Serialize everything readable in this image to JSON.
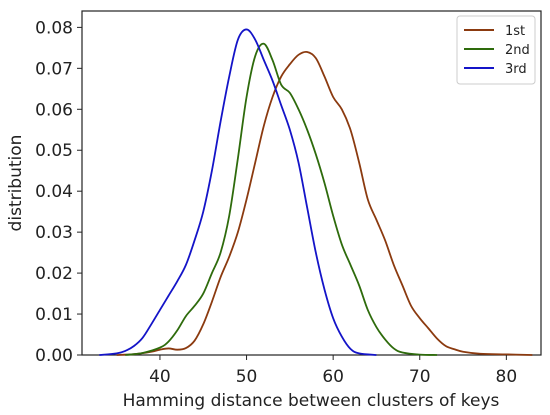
{
  "chart_data": {
    "type": "line",
    "xlabel": "Hamming distance between clusters of keys",
    "ylabel": "distribution",
    "xlim": [
      31,
      84
    ],
    "ylim": [
      0,
      0.084
    ],
    "x_ticks": [
      40,
      50,
      60,
      70,
      80
    ],
    "x_tick_labels": [
      "40",
      "50",
      "60",
      "70",
      "80"
    ],
    "y_ticks": [
      0,
      0.01,
      0.02,
      0.03,
      0.04,
      0.05,
      0.06,
      0.07,
      0.08
    ],
    "y_tick_labels": [
      "0.00",
      "0.01",
      "0.02",
      "0.03",
      "0.04",
      "0.05",
      "0.06",
      "0.07",
      "0.08"
    ],
    "grid": false,
    "legend_position": "top-right",
    "series": [
      {
        "name": "1st",
        "color": "#8B3A0F",
        "points": [
          [
            35,
            0
          ],
          [
            37,
            0.0002
          ],
          [
            39,
            0.0008
          ],
          [
            40,
            0.0013
          ],
          [
            41,
            0.0016
          ],
          [
            42,
            0.0013
          ],
          [
            43,
            0.0017
          ],
          [
            44,
            0.0035
          ],
          [
            45,
            0.0075
          ],
          [
            46,
            0.013
          ],
          [
            47,
            0.019
          ],
          [
            48,
            0.024
          ],
          [
            49,
            0.03
          ],
          [
            50,
            0.038
          ],
          [
            51,
            0.047
          ],
          [
            52,
            0.056
          ],
          [
            53,
            0.063
          ],
          [
            54,
            0.068
          ],
          [
            55,
            0.071
          ],
          [
            56,
            0.0733
          ],
          [
            57,
            0.074
          ],
          [
            58,
            0.0725
          ],
          [
            59,
            0.068
          ],
          [
            60,
            0.063
          ],
          [
            61,
            0.06
          ],
          [
            62,
            0.055
          ],
          [
            63,
            0.047
          ],
          [
            64,
            0.038
          ],
          [
            65,
            0.033
          ],
          [
            66,
            0.028
          ],
          [
            67,
            0.022
          ],
          [
            68,
            0.017
          ],
          [
            69,
            0.012
          ],
          [
            70,
            0.009
          ],
          [
            71,
            0.0065
          ],
          [
            72,
            0.004
          ],
          [
            73,
            0.0022
          ],
          [
            74,
            0.0014
          ],
          [
            75,
            0.0008
          ],
          [
            77,
            0.0003
          ],
          [
            80,
            0.00015
          ],
          [
            83,
            0
          ]
        ]
      },
      {
        "name": "2nd",
        "color": "#2E6B0C",
        "points": [
          [
            36,
            0
          ],
          [
            38,
            0.0005
          ],
          [
            40,
            0.0018
          ],
          [
            41,
            0.0033
          ],
          [
            42,
            0.006
          ],
          [
            43,
            0.0095
          ],
          [
            44,
            0.012
          ],
          [
            45,
            0.015
          ],
          [
            46,
            0.02
          ],
          [
            47,
            0.025
          ],
          [
            48,
            0.034
          ],
          [
            49,
            0.048
          ],
          [
            50,
            0.063
          ],
          [
            51,
            0.073
          ],
          [
            52,
            0.076
          ],
          [
            53,
            0.072
          ],
          [
            54,
            0.066
          ],
          [
            55,
            0.064
          ],
          [
            56,
            0.06
          ],
          [
            57,
            0.055
          ],
          [
            58,
            0.049
          ],
          [
            59,
            0.042
          ],
          [
            60,
            0.034
          ],
          [
            61,
            0.027
          ],
          [
            62,
            0.022
          ],
          [
            63,
            0.017
          ],
          [
            64,
            0.011
          ],
          [
            65,
            0.0068
          ],
          [
            66,
            0.0038
          ],
          [
            67,
            0.0016
          ],
          [
            68,
            0.0006
          ],
          [
            70,
            0.0001
          ],
          [
            72,
            0
          ]
        ]
      },
      {
        "name": "3rd",
        "color": "#1414C8",
        "points": [
          [
            33,
            0
          ],
          [
            35,
            0.0004
          ],
          [
            36,
            0.001
          ],
          [
            37,
            0.0022
          ],
          [
            38,
            0.0042
          ],
          [
            39,
            0.0075
          ],
          [
            40,
            0.011
          ],
          [
            41,
            0.0145
          ],
          [
            42,
            0.018
          ],
          [
            43,
            0.022
          ],
          [
            44,
            0.028
          ],
          [
            45,
            0.035
          ],
          [
            46,
            0.045
          ],
          [
            47,
            0.057
          ],
          [
            48,
            0.068
          ],
          [
            49,
            0.077
          ],
          [
            50,
            0.0795
          ],
          [
            51,
            0.077
          ],
          [
            52,
            0.072
          ],
          [
            53,
            0.067
          ],
          [
            54,
            0.061
          ],
          [
            55,
            0.055
          ],
          [
            56,
            0.047
          ],
          [
            57,
            0.036
          ],
          [
            58,
            0.025
          ],
          [
            59,
            0.016
          ],
          [
            60,
            0.009
          ],
          [
            61,
            0.0045
          ],
          [
            62,
            0.0015
          ],
          [
            63,
            0.0004
          ],
          [
            65,
            0
          ]
        ]
      }
    ]
  }
}
